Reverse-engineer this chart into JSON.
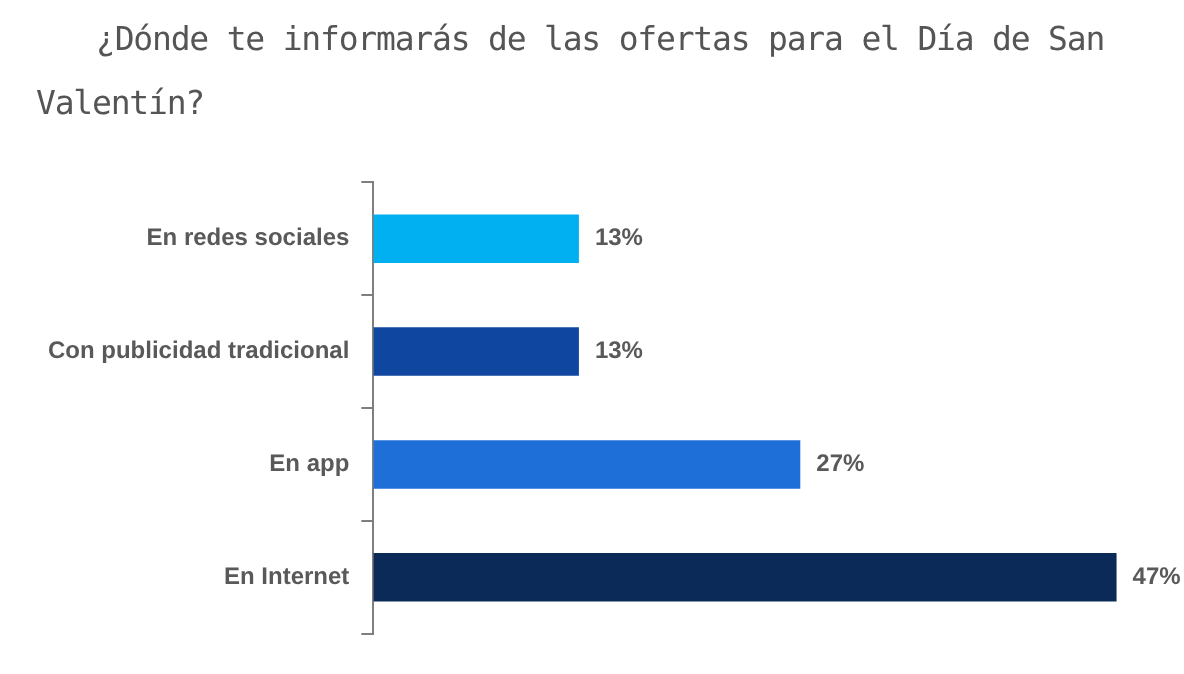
{
  "chart_data": {
    "type": "bar",
    "title": "¿Dónde te informarás de las ofertas para el Día de San Valentín?",
    "orientation": "horizontal",
    "categories": [
      "En redes sociales",
      "Con publicidad tradicional",
      "En app",
      "En Internet"
    ],
    "values": [
      13,
      13,
      27,
      47
    ],
    "colors": [
      "#00b0f0",
      "#0f47a0",
      "#1f6fd8",
      "#0b2a57"
    ],
    "value_labels": [
      "13%",
      "13%",
      "27%",
      "47%"
    ]
  }
}
